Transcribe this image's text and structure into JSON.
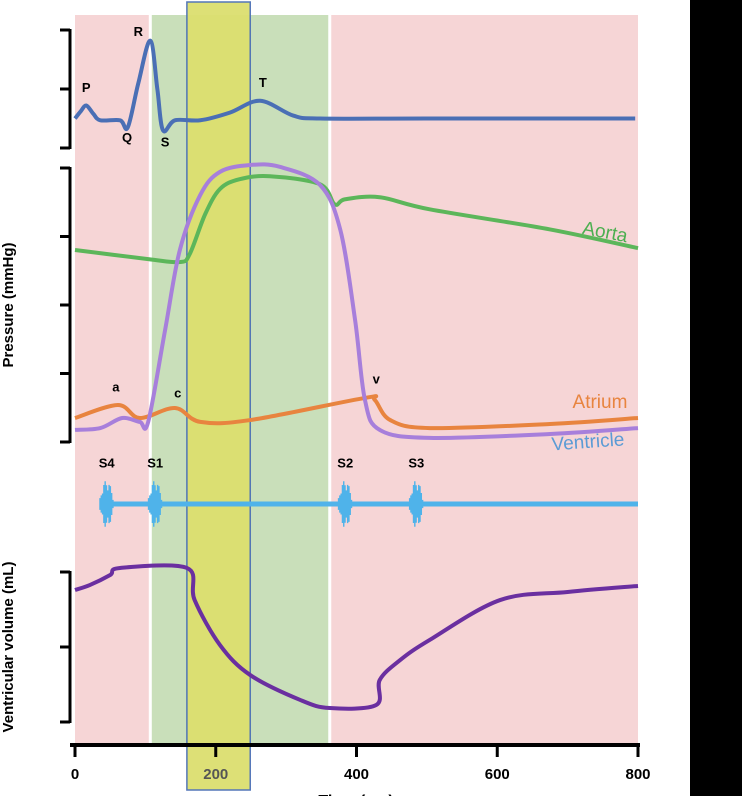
{
  "chart_data": [
    {
      "type": "line",
      "color": "#4a6fb5",
      "xlim": [
        0,
        800
      ],
      "ylim": [
        -0.5,
        1.5
      ],
      "yticks": [
        -0.5,
        0.5,
        1.5
      ],
      "x": [
        0,
        8,
        16,
        26,
        36,
        64,
        75,
        90,
        107,
        117,
        125,
        142,
        178,
        220,
        263,
        310,
        348,
        500,
        796
      ],
      "values": [
        0,
        0.12,
        0.22,
        0.08,
        -0.03,
        -0.03,
        -0.15,
        0.6,
        1.32,
        0.5,
        -0.2,
        -0.03,
        -0.03,
        0.1,
        0.3,
        0.05,
        0,
        0,
        0
      ],
      "annotations": [
        {
          "label": "P",
          "x": 16,
          "y": 0.51
        },
        {
          "label": "R",
          "x": 90,
          "y": 1.46
        },
        {
          "label": "Q",
          "x": 74,
          "y": -0.34
        },
        {
          "label": "S",
          "x": 128,
          "y": -0.42
        },
        {
          "label": "T",
          "x": 267,
          "y": 0.59
        }
      ]
    },
    {
      "type": "line",
      "ylabel": "Pressure (mmHg)",
      "xlim": [
        0,
        800
      ],
      "ylim": [
        0,
        120
      ],
      "yticks": [
        0,
        30,
        60,
        90,
        120
      ],
      "background": "#f6d5d6",
      "shaded_regions": [
        {
          "xlim": [
            107,
            362
          ],
          "color": "#c9dfba"
        },
        {
          "xlim": [
            159,
            249
          ],
          "color": "#dcdf6f"
        }
      ],
      "x": [
        0,
        36,
        61,
        67,
        92,
        104,
        128,
        142,
        149,
        163,
        178,
        185,
        206,
        234,
        249,
        277,
        291,
        348,
        369,
        377,
        384,
        398,
        412,
        426,
        433,
        448,
        504,
        675,
        800
      ],
      "series": [
        {
          "name": "Aorta",
          "color": "#5cb65a",
          "label_color": "#4caf50",
          "label_x": 753,
          "label_y": 91.5,
          "values": [
            84.1,
            null,
            null,
            null,
            null,
            80.1,
            null,
            null,
            78.8,
            82.3,
            null,
            99.8,
            110.8,
            115.1,
            null,
            116.4,
            null,
            112.9,
            104.1,
            null,
            106.3,
            null,
            null,
            null,
            107.2,
            null,
            101.9,
            93.1,
            84.9
          ]
        },
        {
          "name": "Atrium",
          "color": "#e8843f",
          "label_color": "#e8843f",
          "label_x": 746,
          "label_y": 17,
          "values": [
            10.5,
            null,
            16.2,
            null,
            10.5,
            null,
            null,
            14.9,
            null,
            null,
            8.8,
            null,
            null,
            null,
            9.6,
            null,
            null,
            null,
            null,
            null,
            null,
            null,
            19.3,
            18.4,
            null,
            9.6,
            6.1,
            7.9,
            10.5
          ]
        },
        {
          "name": "Ventricle",
          "color": "#a77fdb",
          "label_color": "#5b9bd5",
          "label_x": 729,
          "label_y": -0.4,
          "values": [
            5.3,
            6.1,
            null,
            10.5,
            8.8,
            8.8,
            49,
            null,
            84.1,
            null,
            108.2,
            null,
            118.3,
            null,
            121.3,
            null,
            120.5,
            112.6,
            null,
            92.9,
            null,
            53.4,
            18.4,
            null,
            5.3,
            null,
            1.8,
            3.5,
            6.1
          ]
        }
      ],
      "annotations": [
        {
          "label": "a",
          "x": 58,
          "y": 23.7
        },
        {
          "label": "c",
          "x": 146,
          "y": 21
        },
        {
          "label": "v",
          "x": 428,
          "y": 27.2
        }
      ]
    },
    {
      "type": "events",
      "color": "#4fb3ea",
      "xlim": [
        0,
        800
      ],
      "events": [
        {
          "label": "S4",
          "x": 45
        },
        {
          "label": "S1",
          "x": 114
        },
        {
          "label": "S2",
          "x": 384
        },
        {
          "label": "S3",
          "x": 485
        }
      ]
    },
    {
      "type": "line",
      "ylabel": "Ventricular volume (mL)",
      "xlabel": "Time (ms)",
      "color": "#6a2fa0",
      "xlim": [
        0,
        800
      ],
      "xticks": [
        0,
        200,
        400,
        600,
        800
      ],
      "ylim": [
        40,
        140
      ],
      "yticks": [
        40,
        90,
        140
      ],
      "x": [
        0,
        21,
        50,
        64,
        159,
        170,
        206,
        249,
        320,
        362,
        428,
        433,
        462,
        504,
        604,
        700,
        800
      ],
      "values": [
        128,
        131.3,
        138,
        142.7,
        142.7,
        121.3,
        91.3,
        71.3,
        54.7,
        49.3,
        51.3,
        68,
        81.3,
        94.7,
        121.3,
        126.7,
        130.7
      ]
    }
  ]
}
